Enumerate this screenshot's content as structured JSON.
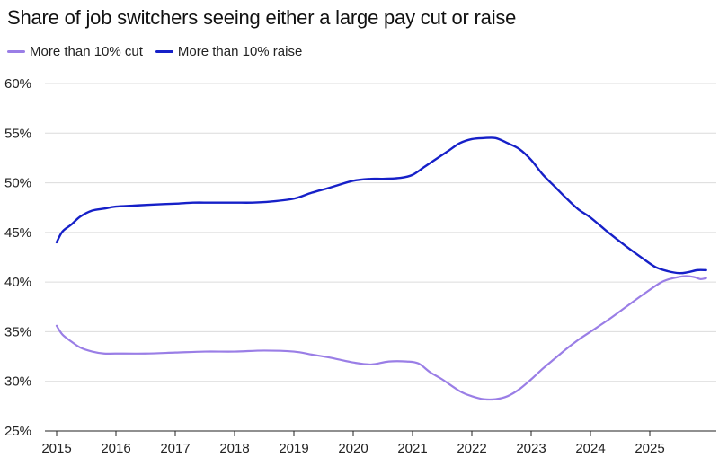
{
  "chart_data": {
    "type": "line",
    "title": "Share of job switchers seeing either a large pay cut or raise",
    "xlabel": "",
    "ylabel": "",
    "xlim": [
      2015,
      2026
    ],
    "ylim": [
      25,
      60
    ],
    "x_ticks": [
      2015,
      2016,
      2017,
      2018,
      2019,
      2020,
      2021,
      2022,
      2023,
      2024,
      2025
    ],
    "x_tick_labels": [
      "2015",
      "2016",
      "2017",
      "2018",
      "2019",
      "2020",
      "2021",
      "2022",
      "2023",
      "2024",
      "2025"
    ],
    "y_ticks": [
      25,
      30,
      35,
      40,
      45,
      50,
      55,
      60
    ],
    "y_tick_labels": [
      "25%",
      "30%",
      "35%",
      "40%",
      "45%",
      "50%",
      "55%",
      "60%"
    ],
    "grid": "horizontal",
    "legend_position": "top-left",
    "series": [
      {
        "name": "More than 10% cut",
        "color": "#9a7ee6",
        "x": [
          2015.0,
          2015.1,
          2015.25,
          2015.4,
          2015.6,
          2015.8,
          2016.0,
          2016.5,
          2017.0,
          2017.5,
          2018.0,
          2018.5,
          2019.0,
          2019.3,
          2019.6,
          2020.0,
          2020.3,
          2020.6,
          2020.9,
          2021.1,
          2021.3,
          2021.5,
          2021.8,
          2022.0,
          2022.2,
          2022.4,
          2022.6,
          2022.8,
          2023.0,
          2023.2,
          2023.4,
          2023.6,
          2023.8,
          2024.0,
          2024.3,
          2024.6,
          2024.9,
          2025.2,
          2025.4,
          2025.6,
          2025.75,
          2025.85,
          2025.95
        ],
        "values": [
          35.6,
          34.7,
          34.0,
          33.4,
          33.0,
          32.8,
          32.8,
          32.8,
          32.9,
          33.0,
          33.0,
          33.1,
          33.0,
          32.7,
          32.4,
          31.9,
          31.7,
          32.0,
          32.0,
          31.8,
          30.9,
          30.2,
          29.0,
          28.5,
          28.2,
          28.2,
          28.5,
          29.2,
          30.2,
          31.3,
          32.3,
          33.3,
          34.2,
          35.0,
          36.2,
          37.5,
          38.8,
          40.0,
          40.4,
          40.6,
          40.5,
          40.3,
          40.4
        ]
      },
      {
        "name": "More than 10% raise",
        "color": "#1620c8",
        "x": [
          2015.0,
          2015.1,
          2015.25,
          2015.4,
          2015.6,
          2015.8,
          2016.0,
          2016.3,
          2016.6,
          2017.0,
          2017.3,
          2017.6,
          2018.0,
          2018.3,
          2018.6,
          2019.0,
          2019.3,
          2019.6,
          2020.0,
          2020.3,
          2020.5,
          2020.8,
          2021.0,
          2021.2,
          2021.4,
          2021.6,
          2021.8,
          2022.0,
          2022.2,
          2022.4,
          2022.6,
          2022.8,
          2023.0,
          2023.2,
          2023.4,
          2023.6,
          2023.8,
          2024.0,
          2024.3,
          2024.6,
          2024.9,
          2025.1,
          2025.3,
          2025.5,
          2025.65,
          2025.8,
          2025.95
        ],
        "values": [
          44.0,
          45.1,
          45.8,
          46.6,
          47.2,
          47.4,
          47.6,
          47.7,
          47.8,
          47.9,
          48.0,
          48.0,
          48.0,
          48.0,
          48.1,
          48.4,
          49.0,
          49.5,
          50.2,
          50.4,
          50.4,
          50.5,
          50.8,
          51.6,
          52.4,
          53.2,
          54.0,
          54.4,
          54.5,
          54.5,
          54.0,
          53.4,
          52.3,
          50.8,
          49.6,
          48.4,
          47.3,
          46.5,
          45.0,
          43.6,
          42.3,
          41.5,
          41.1,
          40.9,
          41.0,
          41.2,
          41.2
        ]
      }
    ]
  }
}
